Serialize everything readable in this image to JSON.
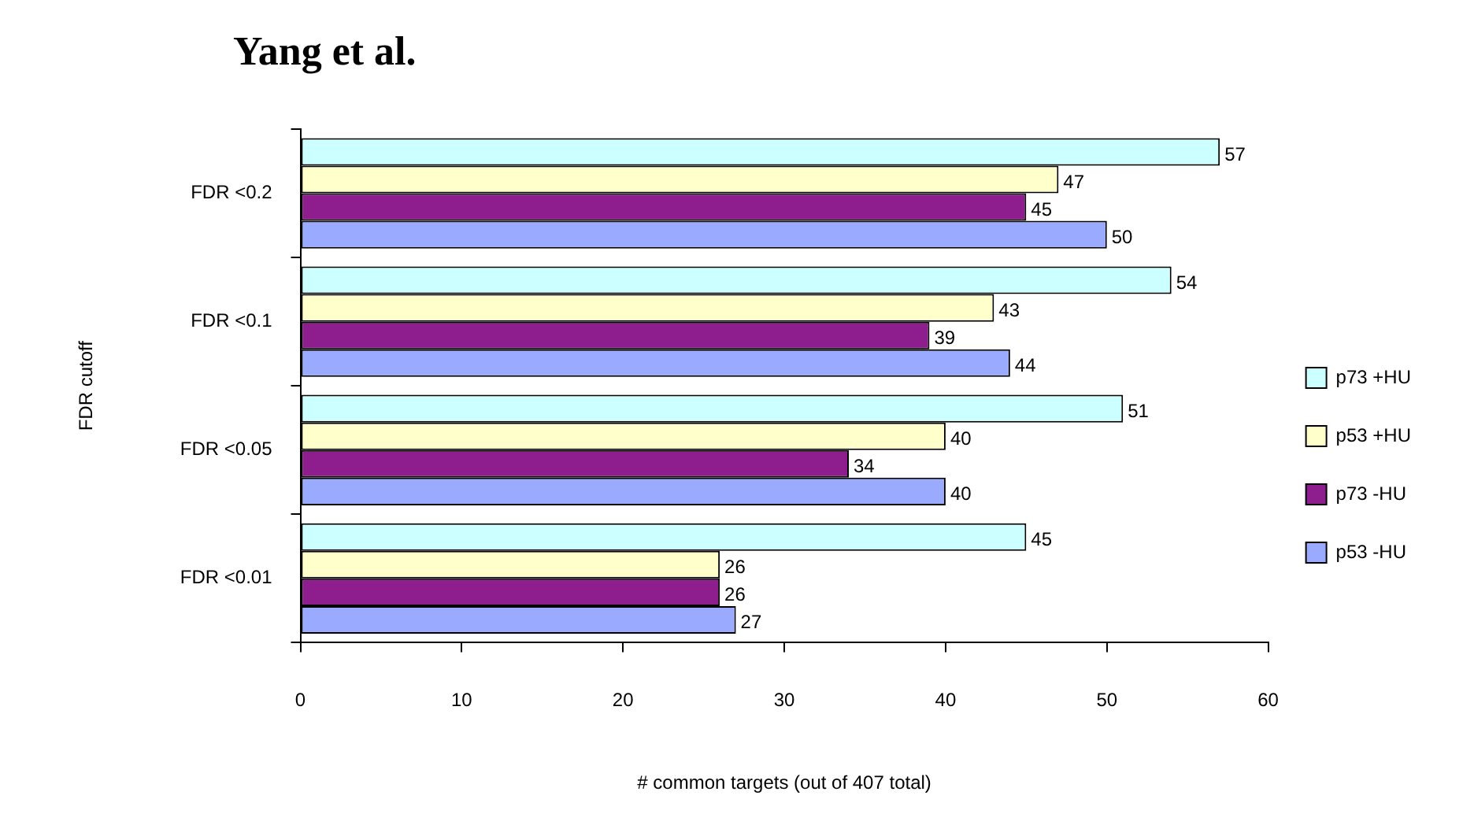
{
  "chart_data": {
    "type": "bar",
    "orientation": "horizontal",
    "title": "Yang et al.",
    "xlabel": "# common targets (out of 407 total)",
    "ylabel": "FDR cutoff",
    "categories": [
      "FDR <0.2",
      "FDR <0.1",
      "FDR <0.05",
      "FDR <0.01"
    ],
    "series": [
      {
        "name": "p73 +HU",
        "color": "#ccffff",
        "values": [
          57,
          54,
          51,
          45
        ]
      },
      {
        "name": "p53 +HU",
        "color": "#ffffcc",
        "values": [
          47,
          43,
          40,
          26
        ]
      },
      {
        "name": "p73 -HU",
        "color": "#8e1e8e",
        "values": [
          45,
          39,
          34,
          26
        ]
      },
      {
        "name": "p53 -HU",
        "color": "#99aaff",
        "values": [
          50,
          44,
          40,
          27
        ]
      }
    ],
    "xlim": [
      0,
      60
    ],
    "xticks": [
      0,
      10,
      20,
      30,
      40,
      50,
      60
    ],
    "grid": false,
    "legend": "right",
    "data_labels": true
  }
}
